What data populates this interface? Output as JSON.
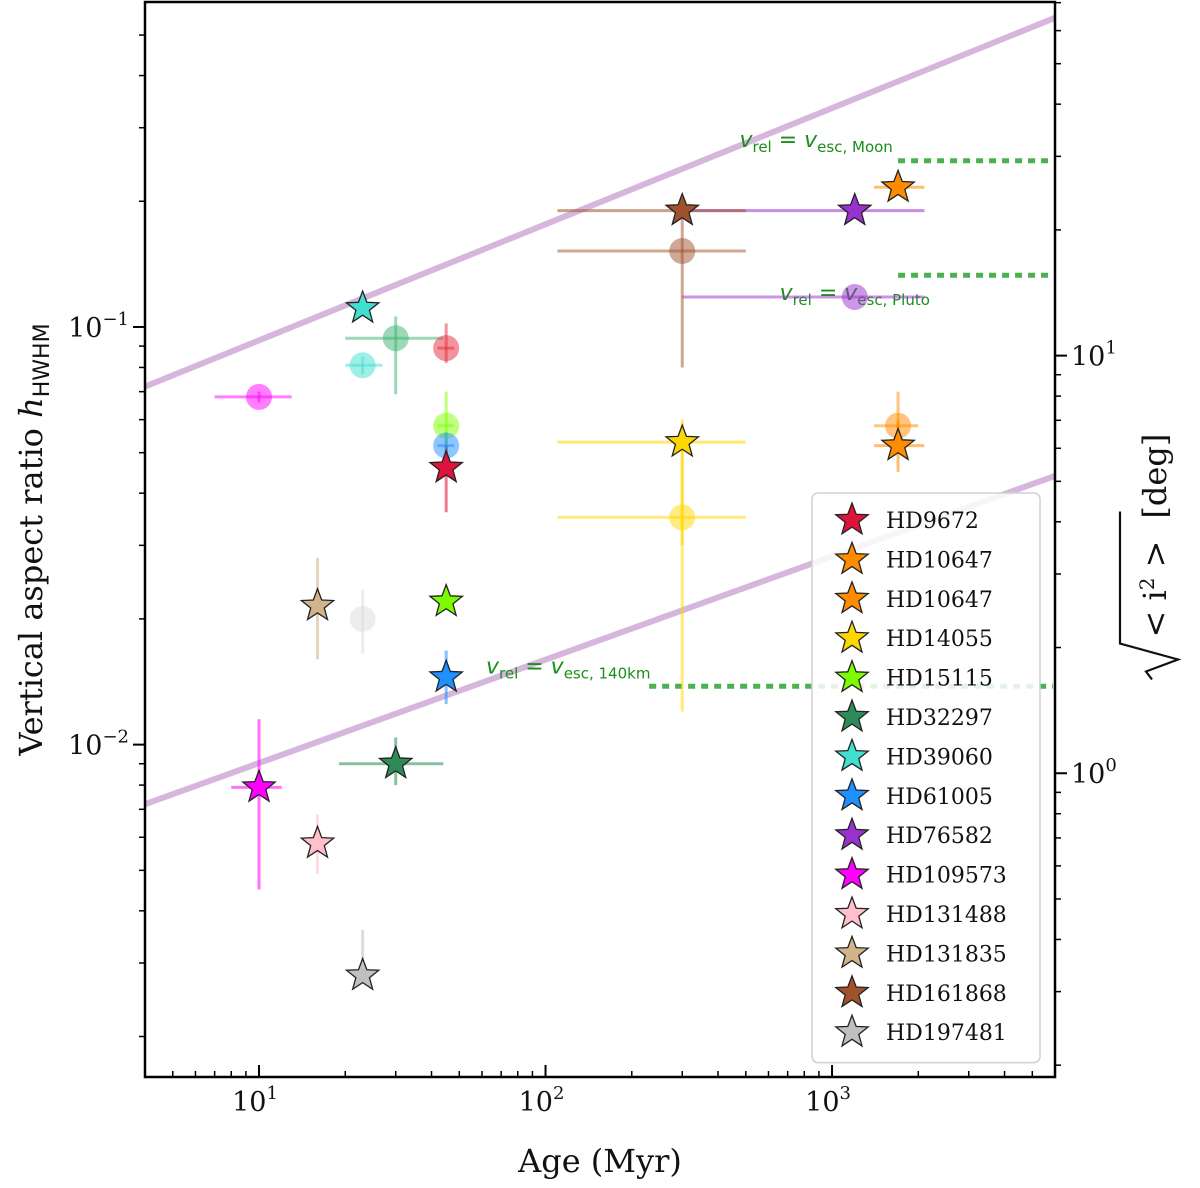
{
  "chart_data": {
    "type": "scatter",
    "xlabel": "Age (Myr)",
    "ylabel": "Vertical aspect ratio h_HWHM",
    "ylabel_right": "sqrt(<i^2>) [deg]",
    "x_scale": "log",
    "y_scale": "log",
    "xlim": [
      4,
      6000
    ],
    "ylim": [
      0.0016,
      0.6
    ],
    "x_ticks": [
      {
        "value": 10,
        "base": "10",
        "exp": "1"
      },
      {
        "value": 100,
        "base": "10",
        "exp": "2"
      },
      {
        "value": 1000,
        "base": "10",
        "exp": "3"
      }
    ],
    "y_ticks": [
      {
        "value": 0.01,
        "base": "10",
        "exp": "−2"
      },
      {
        "value": 0.1,
        "base": "10",
        "exp": "−1"
      }
    ],
    "y2_ticks": [
      {
        "value": 1,
        "base": "10",
        "exp": "0"
      },
      {
        "value": 10,
        "base": "10",
        "exp": "1"
      }
    ],
    "deg_per_h": 117.1,
    "reference_lines": [
      {
        "color": "#cfaad6",
        "points": [
          [
            4,
            0.072
          ],
          [
            6000,
            0.55
          ]
        ]
      },
      {
        "color": "#cfaad6",
        "points": [
          [
            4,
            0.0072
          ],
          [
            6000,
            0.044
          ]
        ]
      }
    ],
    "annotations": [
      {
        "id": "moon",
        "label_main": "v",
        "sub1": "rel",
        "eq": " = v",
        "sub2": "esc, Moon",
        "y": 0.25,
        "x_start": 1700,
        "x_end": 6000,
        "label_x": 880,
        "label_y": 0.27
      },
      {
        "id": "pluto",
        "label_main": "v",
        "sub1": "rel",
        "eq": " = v",
        "sub2": "esc, Pluto",
        "y": 0.133,
        "x_start": 1700,
        "x_end": 6000,
        "label_x": 1200,
        "label_y": 0.116
      },
      {
        "id": "140km",
        "label_main": "v",
        "sub1": "rel",
        "eq": " = v",
        "sub2": "esc, 140km",
        "y": 0.0138,
        "x_start": 230,
        "x_end": 6000,
        "label_x": 120,
        "label_y": 0.0148
      }
    ],
    "circles": [
      {
        "star": "HD9672",
        "x": 45,
        "y": 0.089,
        "xerr": [
          42,
          48
        ],
        "yerr": [
          0.082,
          0.102
        ],
        "color": "#e8283c"
      },
      {
        "star": "HD10647",
        "x": 1700,
        "y": 0.058,
        "xerr": [
          1400,
          2000
        ],
        "yerr": [
          0.05,
          0.07
        ],
        "color": "#ff8c00"
      },
      {
        "star": "HD14055",
        "x": 300,
        "y": 0.035,
        "xerr": [
          110,
          500
        ],
        "yerr": [
          0.012,
          0.058
        ],
        "color": "#ffd700"
      },
      {
        "star": "HD15115",
        "x": 45,
        "y": 0.058,
        "xerr": [
          42,
          48
        ],
        "yerr": [
          0.048,
          0.07
        ],
        "color": "#7fff00"
      },
      {
        "star": "HD32297",
        "x": 30,
        "y": 0.094,
        "xerr": [
          20,
          44
        ],
        "yerr": [
          0.069,
          0.106
        ],
        "color": "#3cb371"
      },
      {
        "star": "HD39060",
        "x": 23,
        "y": 0.081,
        "xerr": [
          20,
          27
        ],
        "yerr": [
          0.077,
          0.085
        ],
        "color": "#40e0d0"
      },
      {
        "star": "HD61005",
        "x": 45,
        "y": 0.052,
        "xerr": [
          42,
          48
        ],
        "yerr": [
          0.048,
          0.056
        ],
        "color": "#1e90ff"
      },
      {
        "star": "HD76582",
        "x": 1200,
        "y": 0.118,
        "xerr": [
          300,
          2100
        ],
        "yerr": [
          0.118,
          0.118
        ],
        "color": "#9932cc"
      },
      {
        "star": "HD109573",
        "x": 10,
        "y": 0.068,
        "xerr": [
          7,
          13
        ],
        "yerr": [
          0.066,
          0.07
        ],
        "color": "#ff00ff"
      },
      {
        "star": "HD131835",
        "x": 23,
        "y": 0.02,
        "xerr": [
          23,
          23
        ],
        "yerr": [
          0.0165,
          0.0235
        ],
        "color": "#dcdcdc"
      },
      {
        "star": "HD161868",
        "x": 300,
        "y": 0.152,
        "xerr": [
          110,
          500
        ],
        "yerr": [
          0.08,
          0.2
        ],
        "color": "#a0522d"
      }
    ],
    "stars": [
      {
        "name": "HD9672",
        "x": 45,
        "y": 0.046,
        "xerr": [
          45,
          45
        ],
        "yerr": [
          0.036,
          0.052
        ],
        "color": "#dc143c"
      },
      {
        "name": "HD10647",
        "x": 1700,
        "y": 0.216,
        "xerr": [
          1400,
          2100
        ],
        "yerr": [
          0.216,
          0.216
        ],
        "color": "#ff8c00"
      },
      {
        "name": "HD10647",
        "x": 1700,
        "y": 0.052,
        "xerr": [
          1400,
          2100
        ],
        "yerr": [
          0.045,
          0.06
        ],
        "color": "#ff8c00"
      },
      {
        "name": "HD14055",
        "x": 300,
        "y": 0.053,
        "xerr": [
          110,
          500
        ],
        "yerr": [
          0.03,
          0.06
        ],
        "color": "#ffd700"
      },
      {
        "name": "HD15115",
        "x": 45,
        "y": 0.022,
        "xerr": [
          45,
          45
        ],
        "yerr": [
          0.022,
          0.022
        ],
        "color": "#7cfc00"
      },
      {
        "name": "HD32297",
        "x": 30,
        "y": 0.009,
        "xerr": [
          19,
          44
        ],
        "yerr": [
          0.008,
          0.0104
        ],
        "color": "#2e8b57"
      },
      {
        "name": "HD39060",
        "x": 23,
        "y": 0.111,
        "xerr": [
          23,
          23
        ],
        "yerr": [
          0.111,
          0.111
        ],
        "color": "#40e0d0"
      },
      {
        "name": "HD61005",
        "x": 45,
        "y": 0.0145,
        "xerr": [
          45,
          45
        ],
        "yerr": [
          0.0125,
          0.0168
        ],
        "color": "#1e90ff"
      },
      {
        "name": "HD76582",
        "x": 1200,
        "y": 0.19,
        "xerr": [
          300,
          2100
        ],
        "yerr": [
          0.19,
          0.19
        ],
        "color": "#9932cc"
      },
      {
        "name": "HD109573",
        "x": 10,
        "y": 0.0079,
        "xerr": [
          8,
          12
        ],
        "yerr": [
          0.0045,
          0.0115
        ],
        "color": "#ff00ff"
      },
      {
        "name": "HD131488",
        "x": 16,
        "y": 0.0058,
        "xerr": [
          16,
          16
        ],
        "yerr": [
          0.0049,
          0.0068
        ],
        "color": "#ffc0cb"
      },
      {
        "name": "HD131835",
        "x": 16,
        "y": 0.0215,
        "xerr": [
          16,
          16
        ],
        "yerr": [
          0.016,
          0.028
        ],
        "color": "#d2b48c"
      },
      {
        "name": "HD161868",
        "x": 300,
        "y": 0.19,
        "xerr": [
          110,
          500
        ],
        "yerr": [
          0.19,
          0.19
        ],
        "color": "#a0522d"
      },
      {
        "name": "HD197481",
        "x": 23,
        "y": 0.0028,
        "xerr": [
          23,
          23
        ],
        "yerr": [
          0.0028,
          0.0036
        ],
        "color": "#c0c0c0"
      }
    ],
    "legend": {
      "placement": "lower-right",
      "entries": [
        {
          "label": "HD9672",
          "color": "#dc143c"
        },
        {
          "label": "HD10647",
          "color": "#ff8c00"
        },
        {
          "label": "HD10647",
          "color": "#ff8c00"
        },
        {
          "label": "HD14055",
          "color": "#ffd700"
        },
        {
          "label": "HD15115",
          "color": "#7cfc00"
        },
        {
          "label": "HD32297",
          "color": "#2e8b57"
        },
        {
          "label": "HD39060",
          "color": "#40e0d0"
        },
        {
          "label": "HD61005",
          "color": "#1e90ff"
        },
        {
          "label": "HD76582",
          "color": "#9932cc"
        },
        {
          "label": "HD109573",
          "color": "#ff00ff"
        },
        {
          "label": "HD131488",
          "color": "#ffc0cb"
        },
        {
          "label": "HD131835",
          "color": "#d2b48c"
        },
        {
          "label": "HD161868",
          "color": "#a0522d"
        },
        {
          "label": "HD197481",
          "color": "#c0c0c0"
        }
      ]
    }
  }
}
